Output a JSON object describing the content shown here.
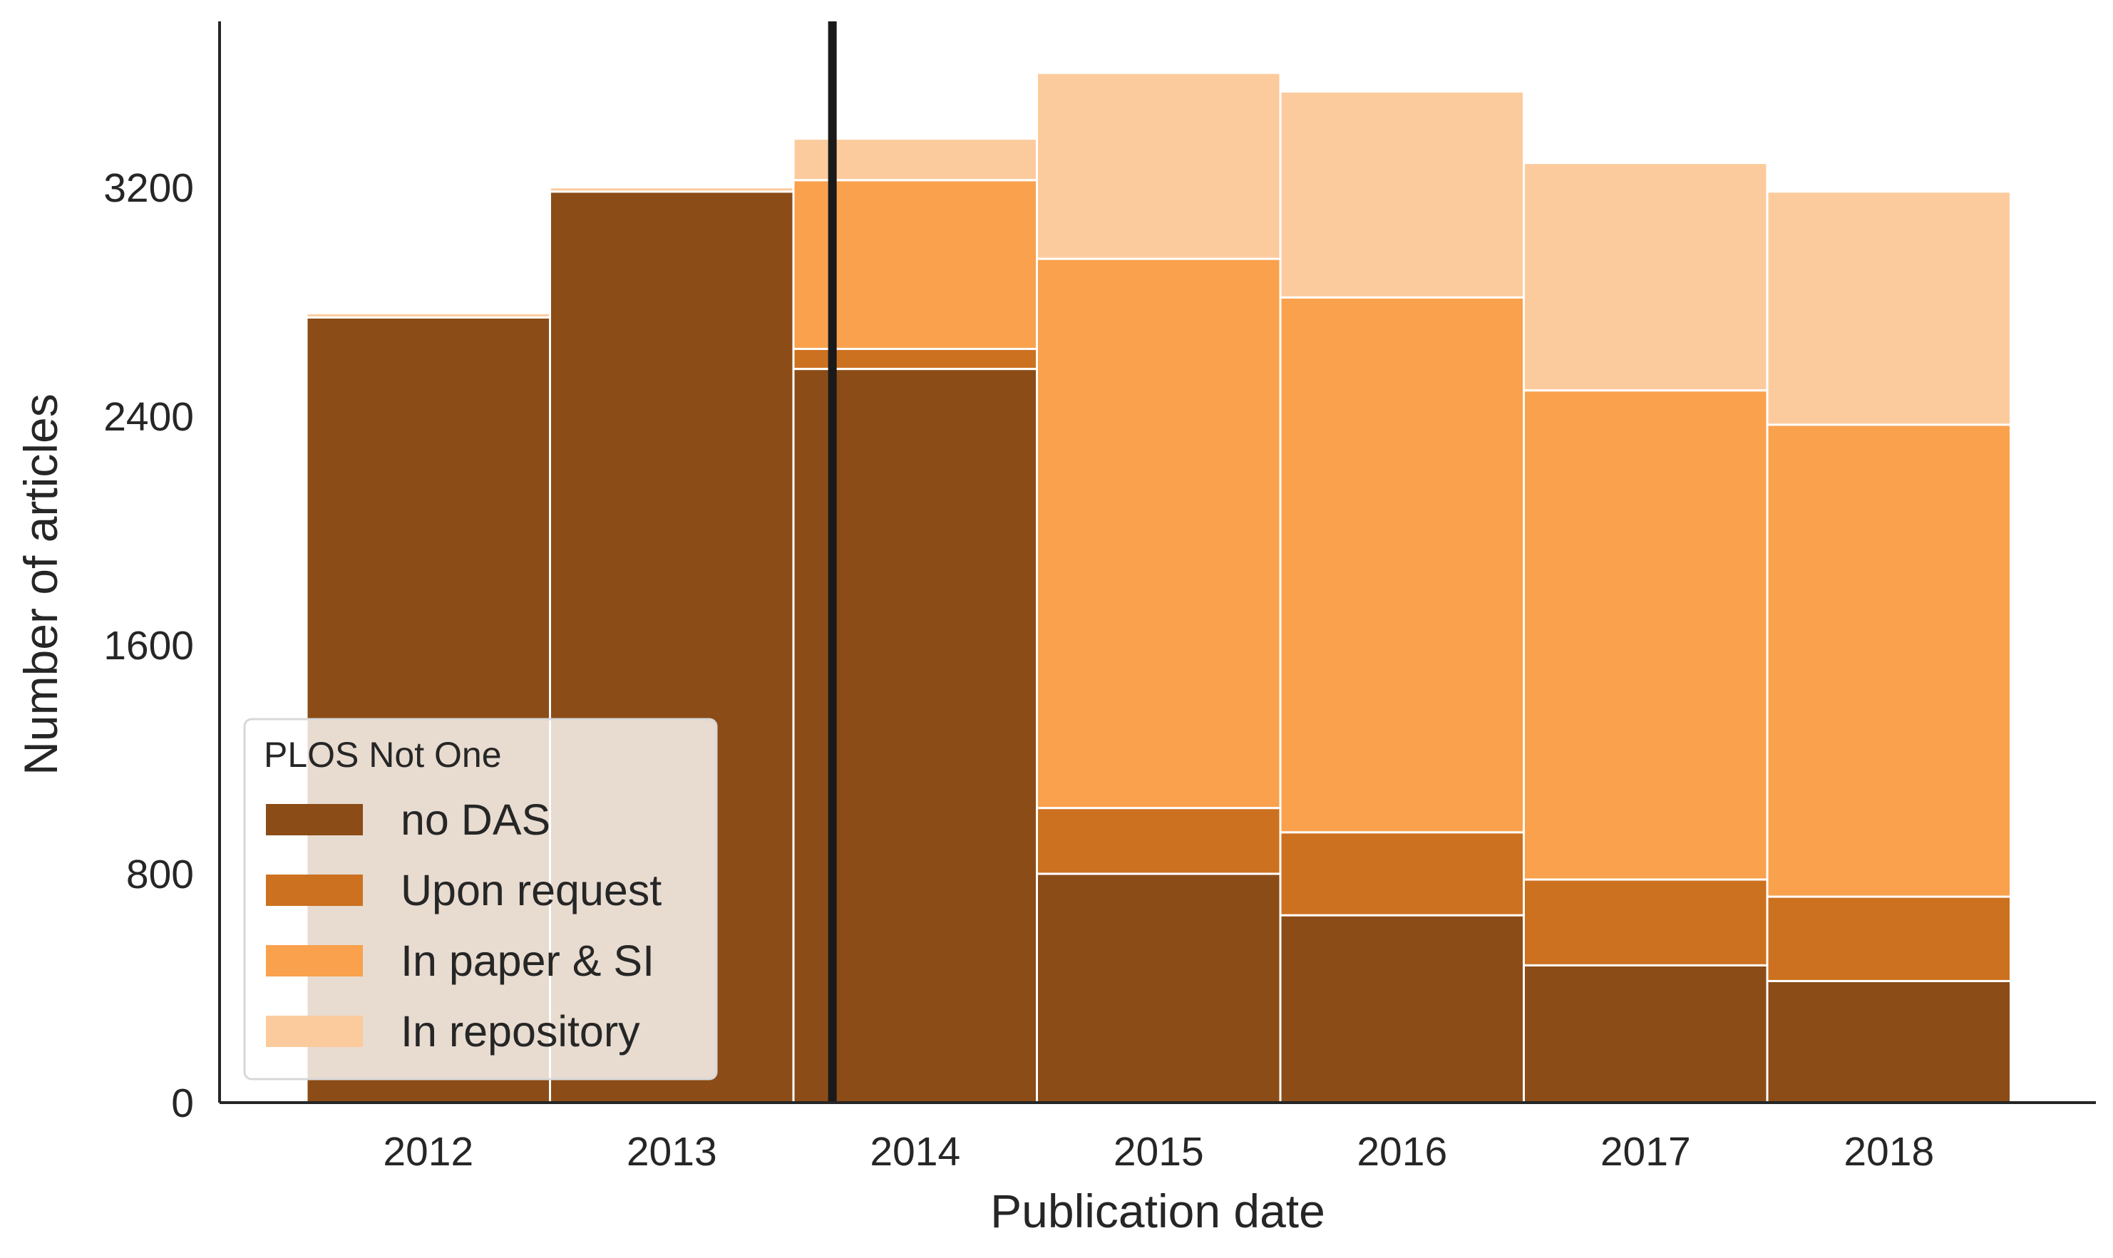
{
  "chart_data": {
    "type": "bar",
    "stacked": true,
    "categories": [
      "2012",
      "2013",
      "2014",
      "2015",
      "2016",
      "2017",
      "2018"
    ],
    "series": [
      {
        "name": "no DAS",
        "color": "#8b4c17",
        "values": [
          2745,
          3185,
          2565,
          800,
          655,
          480,
          425
        ]
      },
      {
        "name": "Upon request",
        "color": "#cc7120",
        "values": [
          0,
          0,
          70,
          230,
          290,
          300,
          295
        ]
      },
      {
        "name": "In paper & SI",
        "color": "#f9a14d",
        "values": [
          0,
          0,
          590,
          1920,
          1870,
          1710,
          1650
        ]
      },
      {
        "name": "In repository",
        "color": "#fccb9d",
        "values": [
          15,
          15,
          145,
          650,
          720,
          795,
          815
        ]
      }
    ],
    "vline_x": "2014",
    "vline_offset_fraction": 0.16,
    "xlabel": "Publication date",
    "ylabel": "Number of articles",
    "yticks": [
      "0",
      "800",
      "1600",
      "2400",
      "3200"
    ],
    "ylim": [
      0,
      3780
    ],
    "legend": {
      "title": "PLOS Not One",
      "placement": "lower-left"
    },
    "grid": false
  }
}
